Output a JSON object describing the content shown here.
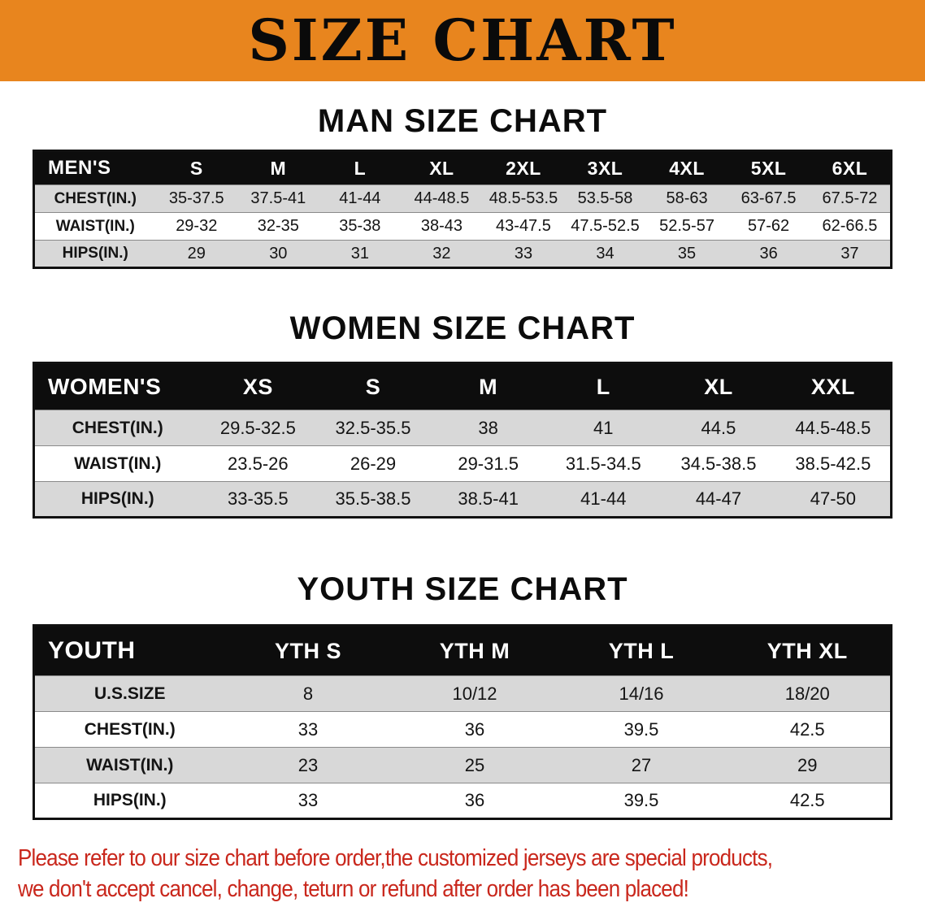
{
  "banner": {
    "title": "SIZE CHART"
  },
  "colors": {
    "banner_bg": "#E8851E",
    "header_bg": "#0D0D0D",
    "row_alt_bg": "#D8D8D8",
    "disclaimer_red": "#C9271C"
  },
  "sections": [
    {
      "id": "men",
      "heading": "MAN SIZE CHART",
      "table": {
        "header": [
          "MEN'S",
          "S",
          "M",
          "L",
          "XL",
          "2XL",
          "3XL",
          "4XL",
          "5XL",
          "6XL"
        ],
        "rows": [
          [
            "CHEST(IN.)",
            "35-37.5",
            "37.5-41",
            "41-44",
            "44-48.5",
            "48.5-53.5",
            "53.5-58",
            "58-63",
            "63-67.5",
            "67.5-72"
          ],
          [
            "WAIST(IN.)",
            "29-32",
            "32-35",
            "35-38",
            "38-43",
            "43-47.5",
            "47.5-52.5",
            "52.5-57",
            "57-62",
            "62-66.5"
          ],
          [
            "HIPS(IN.)",
            "29",
            "30",
            "31",
            "32",
            "33",
            "34",
            "35",
            "36",
            "37"
          ]
        ]
      }
    },
    {
      "id": "women",
      "heading": "WOMEN SIZE CHART",
      "table": {
        "header": [
          "WOMEN'S",
          "XS",
          "S",
          "M",
          "L",
          "XL",
          "XXL"
        ],
        "rows": [
          [
            "CHEST(IN.)",
            "29.5-32.5",
            "32.5-35.5",
            "38",
            "41",
            "44.5",
            "44.5-48.5"
          ],
          [
            "WAIST(IN.)",
            "23.5-26",
            "26-29",
            "29-31.5",
            "31.5-34.5",
            "34.5-38.5",
            "38.5-42.5"
          ],
          [
            "HIPS(IN.)",
            "33-35.5",
            "35.5-38.5",
            "38.5-41",
            "41-44",
            "44-47",
            "47-50"
          ]
        ]
      }
    },
    {
      "id": "youth",
      "heading": "YOUTH SIZE CHART",
      "table": {
        "header": [
          "YOUTH",
          "YTH S",
          "YTH M",
          "YTH L",
          "YTH XL"
        ],
        "rows": [
          [
            "U.S.SIZE",
            "8",
            "10/12",
            "14/16",
            "18/20"
          ],
          [
            "CHEST(IN.)",
            "33",
            "36",
            "39.5",
            "42.5"
          ],
          [
            "WAIST(IN.)",
            "23",
            "25",
            "27",
            "29"
          ],
          [
            "HIPS(IN.)",
            "33",
            "36",
            "39.5",
            "42.5"
          ]
        ]
      }
    }
  ],
  "disclaimer": {
    "line1": "Please refer to our size chart before order,the customized jerseys are special products,",
    "line2": "we don't accept cancel, change, teturn or refund after order has been placed!"
  }
}
